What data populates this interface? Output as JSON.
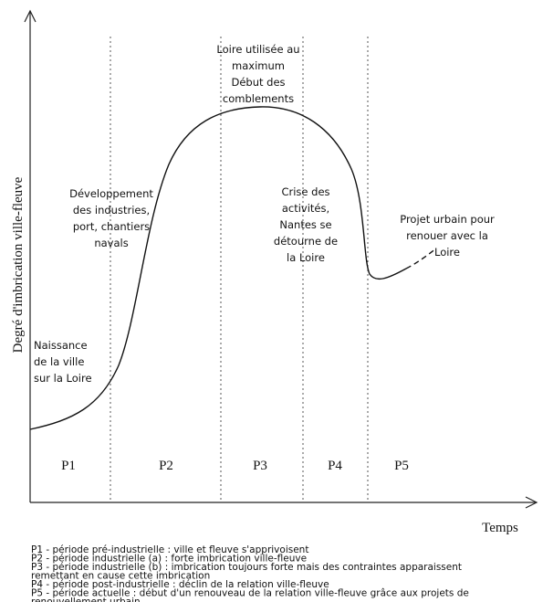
{
  "axes": {
    "y_label": "Degré d'imbrication ville-fleuve",
    "x_label": "Temps"
  },
  "periods": [
    "P1",
    "P2",
    "P3",
    "P4",
    "P5"
  ],
  "annotations": [
    {
      "lines": [
        "Naissance",
        "de la ville",
        "sur la Loire"
      ]
    },
    {
      "lines": [
        "Développement",
        "des industries,",
        "port, chantiers",
        "navals"
      ]
    },
    {
      "lines": [
        "Loire utilisée au",
        "maximum",
        "Début des",
        "comblements"
      ]
    },
    {
      "lines": [
        "Crise des",
        "activités,",
        "Nantes se",
        "détourne de",
        "la Loire"
      ]
    },
    {
      "lines": [
        "Projet urbain pour",
        "renouer avec la",
        "Loire"
      ]
    }
  ],
  "legend": [
    "P1 - période pré-industrielle : ville et fleuve s'apprivoisent",
    "P2 - période industrielle (a) : forte imbrication ville-fleuve",
    "P3 - période industrielle (b) : imbrication toujours forte mais des contraintes apparaissent",
    "remettant en cause cette imbrication",
    "P4 - période post-industrielle : déclin de la relation ville-fleuve",
    "P5 - période actuelle : début d'un renouveau de la relation ville-fleuve grâce aux projets de",
    "renouvellement urbain"
  ]
}
